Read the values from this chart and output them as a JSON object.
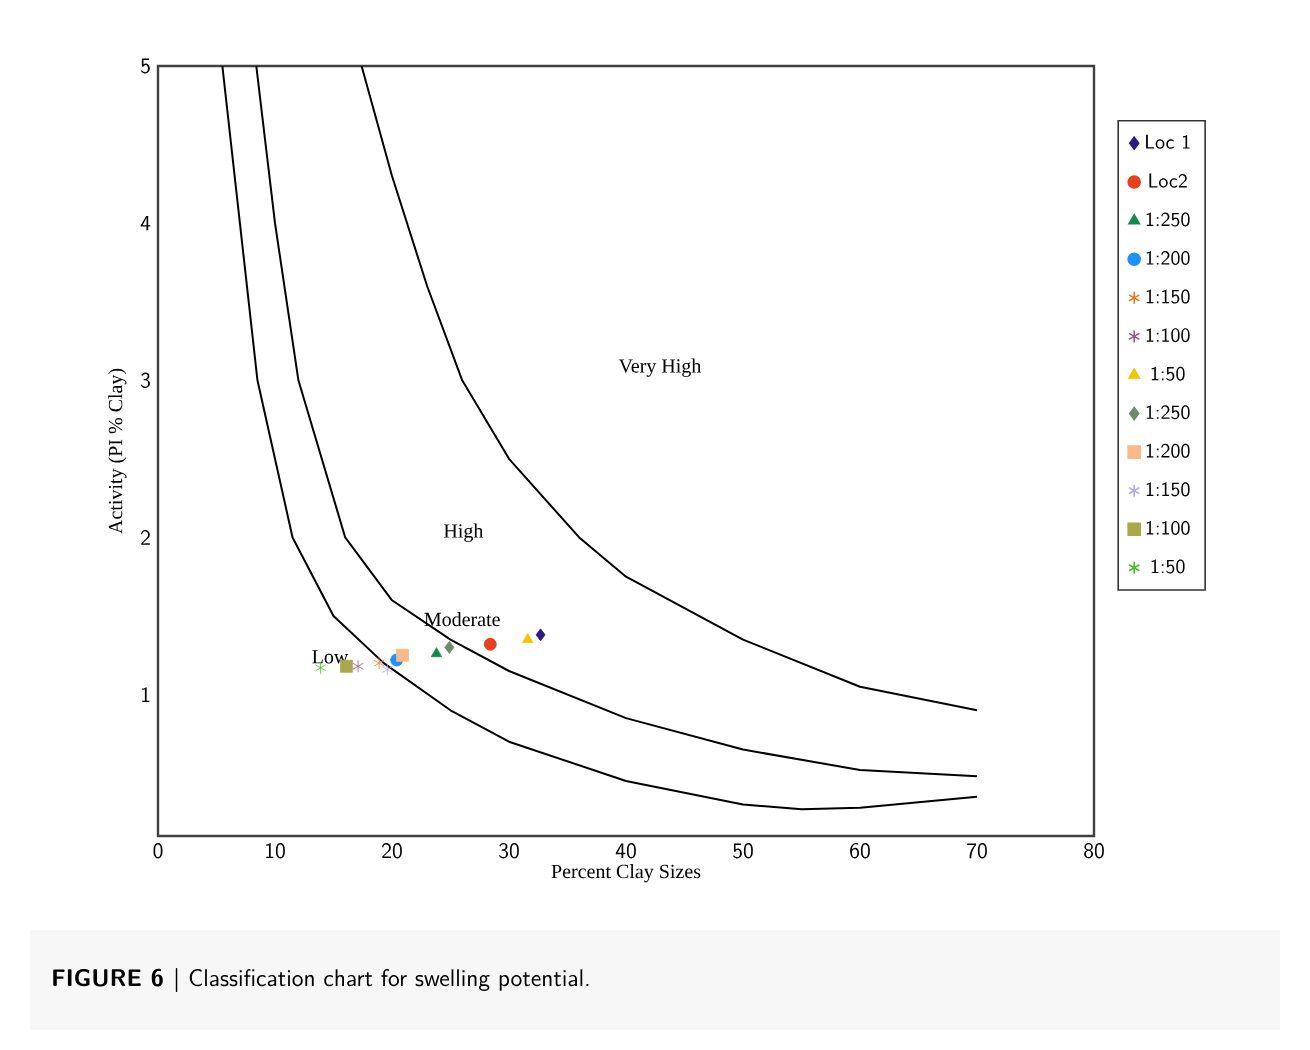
{
  "chart_data": {
    "type": "scatter",
    "xlabel": "Percent Clay Sizes",
    "ylabel": "Activity (PI % Clay)",
    "xlim": [
      0,
      80
    ],
    "ylim": [
      0.1,
      5
    ],
    "xticks": [
      0,
      10,
      20,
      30,
      40,
      50,
      60,
      70,
      80
    ],
    "yticks": [
      1,
      2,
      3,
      4,
      5
    ],
    "grid": false,
    "legend": "right",
    "series": [
      {
        "type": "line",
        "color": "#000000",
        "marker": "none",
        "x": [
          5.5,
          7,
          8.5,
          11.5,
          15,
          19.3,
          25,
          30,
          40,
          50,
          55,
          60,
          70
        ],
        "values": [
          5,
          4,
          3,
          2,
          1.5,
          1.2,
          0.9,
          0.7,
          0.45,
          0.3,
          0.27,
          0.28,
          0.35
        ]
      },
      {
        "type": "line",
        "color": "#000000",
        "marker": "none",
        "x": [
          8.4,
          10,
          12,
          16,
          20,
          25,
          30,
          35,
          40,
          50,
          60,
          70
        ],
        "values": [
          5,
          4,
          3,
          2,
          1.6,
          1.35,
          1.15,
          1.0,
          0.85,
          0.65,
          0.52,
          0.48
        ]
      },
      {
        "type": "line",
        "color": "#000000",
        "marker": "none",
        "x": [
          17.4,
          20,
          23,
          26,
          30,
          36,
          40,
          50,
          60,
          70
        ],
        "values": [
          5,
          4.3,
          3.6,
          3,
          2.5,
          2,
          1.75,
          1.35,
          1.05,
          0.9
        ]
      },
      {
        "name": "Loc 1",
        "color": "#2e1a87",
        "marker": "diamond",
        "x": [
          32.7
        ],
        "values": [
          1.38
        ]
      },
      {
        "name": "Loc2",
        "color": "#e8401c",
        "marker": "circle",
        "x": [
          28.4
        ],
        "values": [
          1.32
        ]
      },
      {
        "name": "1:250",
        "color": "#138a4a",
        "marker": "triangle",
        "x": [
          23.8
        ],
        "values": [
          1.26
        ]
      },
      {
        "name": "1:200",
        "color": "#1e90ff",
        "marker": "circle",
        "x": [
          20.4
        ],
        "values": [
          1.22
        ]
      },
      {
        "name": "1:150",
        "color": "#f07818",
        "marker": "cross",
        "x": [
          18.9
        ],
        "values": [
          1.2
        ]
      },
      {
        "name": "1:100",
        "color": "#a0508a",
        "marker": "cross",
        "x": [
          17.1
        ],
        "values": [
          1.18
        ]
      },
      {
        "name": "1:50",
        "color": "#f5c400",
        "marker": "triangle",
        "x": [
          31.6
        ],
        "values": [
          1.35
        ]
      },
      {
        "name": "1:250",
        "color": "#6f8a6a",
        "marker": "diamond",
        "x": [
          24.9
        ],
        "values": [
          1.3
        ]
      },
      {
        "name": "1:200",
        "color": "#f9b98a",
        "marker": "square",
        "x": [
          20.9
        ],
        "values": [
          1.25
        ]
      },
      {
        "name": "1:150",
        "color": "#b3a6e0",
        "marker": "cross",
        "x": [
          19.6
        ],
        "values": [
          1.16
        ]
      },
      {
        "name": "1:100",
        "color": "#a9a94a",
        "marker": "square",
        "x": [
          16.1
        ],
        "values": [
          1.18
        ]
      },
      {
        "name": "1:50",
        "color": "#44c020",
        "marker": "cross",
        "x": [
          13.9
        ],
        "values": [
          1.17
        ]
      }
    ],
    "annotations": [
      "Very High",
      "High",
      "Moderate",
      "Low",
      "**FIGURE 6 |** Classification chart for swelling potential."
    ]
  }
}
